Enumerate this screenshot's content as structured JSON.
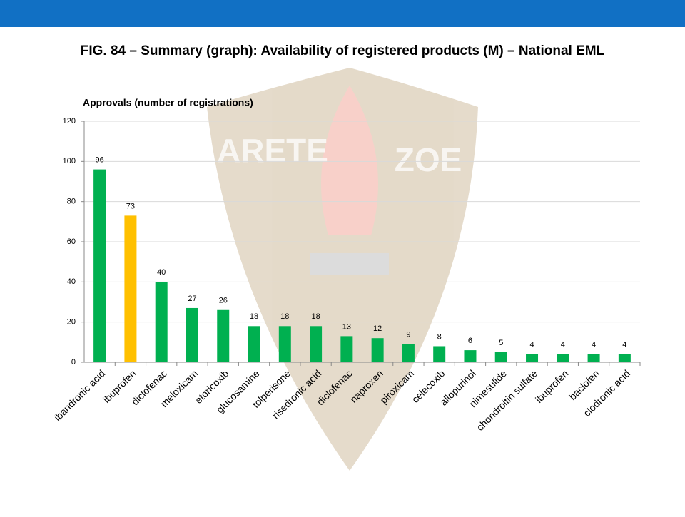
{
  "chart_data": {
    "type": "bar",
    "title": "FIG. 84 – Summary (graph): Availability of registered products (M) – National EML",
    "y_axis_label": "Approvals (number of registrations)",
    "categories": [
      "ibandronic acid",
      "ibuprofen",
      "diclofenac",
      "meloxicam",
      "etoricoxib",
      "glucosamine",
      "tolperisone",
      "risedronic acid",
      "diclofenac",
      "naproxen",
      "piroxicam",
      "celecoxib",
      "allopurinol",
      "nimesulide",
      "chondroitin sulfate",
      "ibuprofen",
      "baclofen",
      "clodronic acid"
    ],
    "values": [
      96,
      73,
      40,
      27,
      26,
      18,
      18,
      18,
      13,
      12,
      9,
      8,
      6,
      5,
      4,
      4,
      4,
      4
    ],
    "colors": [
      "#00b050",
      "#ffc000",
      "#00b050",
      "#00b050",
      "#00b050",
      "#00b050",
      "#00b050",
      "#00b050",
      "#00b050",
      "#00b050",
      "#00b050",
      "#00b050",
      "#00b050",
      "#00b050",
      "#00b050",
      "#00b050",
      "#00b050",
      "#00b050"
    ],
    "ylim": [
      0,
      120
    ],
    "yticks": [
      0,
      20,
      40,
      60,
      80,
      100,
      120
    ],
    "grid": true
  },
  "watermark": [
    "ARETE",
    "ZOE"
  ]
}
